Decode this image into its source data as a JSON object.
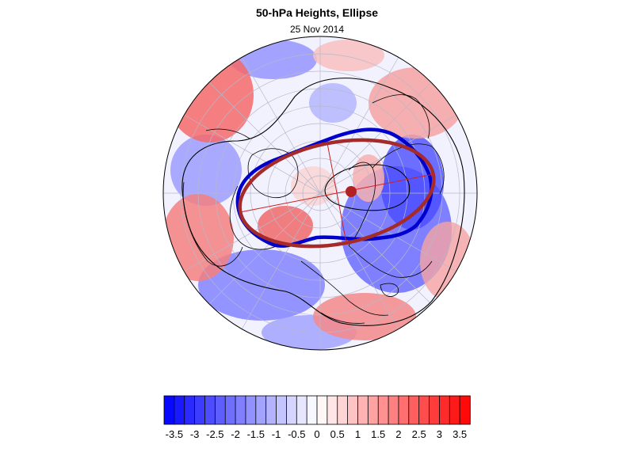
{
  "title": "50-hPa Heights, Ellipse",
  "date": "25 Nov 2014",
  "colorbar": {
    "labels": [
      "-3.5",
      "-3",
      "-2.5",
      "-2",
      "-1.5",
      "-1",
      "-0.5",
      "0",
      "0.5",
      "1",
      "1.5",
      "2",
      "2.5",
      "3",
      "3.5"
    ],
    "min": -3.75,
    "max": 3.75,
    "steps": 30,
    "negative_color": "#0000ff",
    "positive_color": "#ff0000"
  },
  "colors": {
    "observed_contour": "#0000cc",
    "fitted_ellipse": "#a52a2a",
    "ellipse_center": "#b22222"
  }
}
